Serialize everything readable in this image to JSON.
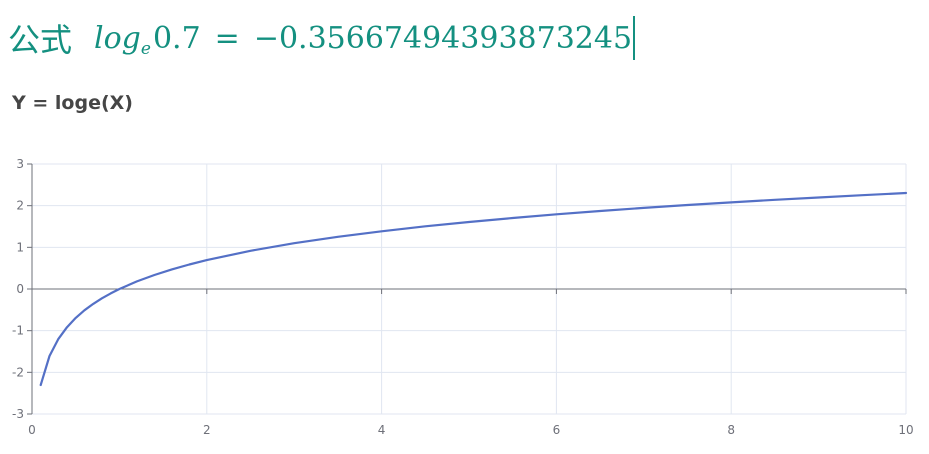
{
  "formula": {
    "label": "公式",
    "fn": "log",
    "base": "e",
    "argument": "0.7",
    "equals": "=",
    "result": "−0.35667494393873245"
  },
  "chart_title": "Y = loge(X)",
  "colors": {
    "formula": "#149080",
    "line": "#5470c6",
    "grid": "#e0e6f1",
    "axis": "#6e7079"
  },
  "chart_data": {
    "type": "line",
    "title": "Y = loge(X)",
    "function": "y = ln(x)",
    "xlim": [
      0,
      10
    ],
    "ylim": [
      -3,
      3
    ],
    "x_ticks": [
      "0",
      "2",
      "4",
      "6",
      "8",
      "10"
    ],
    "y_ticks": [
      "3",
      "2",
      "1",
      "0",
      "-1",
      "-2",
      "-3"
    ],
    "grid": true,
    "series": [
      {
        "x": [
          0.1,
          0.2,
          0.3,
          0.4,
          0.5,
          0.6,
          0.7,
          0.8,
          0.9,
          1.0,
          1.2,
          1.4,
          1.6,
          1.8,
          2.0,
          2.5,
          3.0,
          3.5,
          4.0,
          4.5,
          5.0,
          5.5,
          6.0,
          6.5,
          7.0,
          7.5,
          8.0,
          8.5,
          9.0,
          9.5,
          10.0
        ],
        "y": [
          -2.303,
          -1.609,
          -1.204,
          -0.916,
          -0.693,
          -0.511,
          -0.357,
          -0.223,
          -0.105,
          0.0,
          0.182,
          0.336,
          0.47,
          0.588,
          0.693,
          0.916,
          1.099,
          1.253,
          1.386,
          1.504,
          1.609,
          1.705,
          1.792,
          1.872,
          1.946,
          2.015,
          2.079,
          2.14,
          2.197,
          2.251,
          2.303
        ]
      }
    ]
  }
}
